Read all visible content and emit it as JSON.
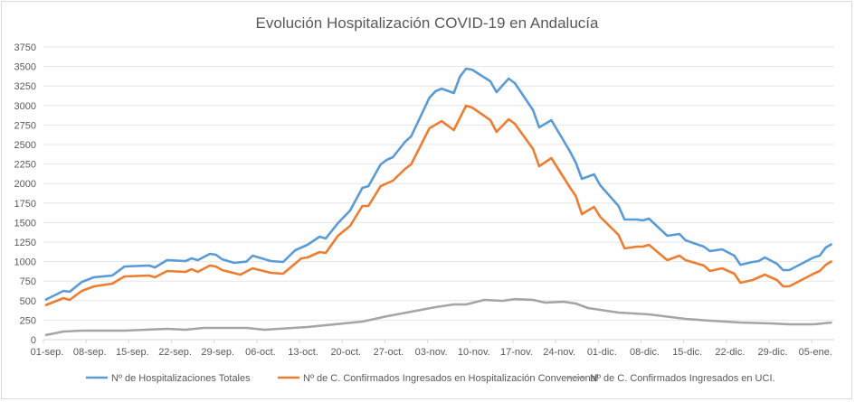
{
  "chart_data": {
    "type": "line",
    "title": "Evolución Hospitalización COVID-19 en Andalucía",
    "x_unit": "days since 01-sep.",
    "xlabel": "",
    "ylabel": "",
    "ylim": [
      0,
      3750
    ],
    "yticks": [
      0,
      250,
      500,
      750,
      1000,
      1250,
      1500,
      1750,
      2000,
      2250,
      2500,
      2750,
      3000,
      3250,
      3500,
      3750
    ],
    "xticks": [
      "01-sep.",
      "08-sep.",
      "15-sep.",
      "22-sep.",
      "29-sep.",
      "06-oct.",
      "13-oct.",
      "20-oct.",
      "27-oct.",
      "03-nov.",
      "10-nov.",
      "17-nov.",
      "24-nov.",
      "01-dic.",
      "08-dic.",
      "15-dic.",
      "22-dic.",
      "29-dic.",
      "05-ene."
    ],
    "grid": true,
    "legend_position": "bottom",
    "series": [
      {
        "name": "Nº de Hospitalizaciones Totales",
        "color": "#5b9bd5",
        "points": [
          [
            0,
            509
          ],
          [
            3,
            625
          ],
          [
            4,
            613
          ],
          [
            6,
            740
          ],
          [
            8,
            800
          ],
          [
            11,
            822
          ],
          [
            13,
            937
          ],
          [
            17,
            950
          ],
          [
            18,
            926
          ],
          [
            20,
            1020
          ],
          [
            23,
            1007
          ],
          [
            24,
            1042
          ],
          [
            25,
            1018
          ],
          [
            27,
            1100
          ],
          [
            28,
            1088
          ],
          [
            29,
            1030
          ],
          [
            31,
            984
          ],
          [
            33,
            1000
          ],
          [
            34,
            1076
          ],
          [
            37,
            1007
          ],
          [
            39,
            995
          ],
          [
            41,
            1146
          ],
          [
            43,
            1215
          ],
          [
            45,
            1319
          ],
          [
            46,
            1296
          ],
          [
            48,
            1493
          ],
          [
            50,
            1655
          ],
          [
            52,
            1944
          ],
          [
            53,
            1967
          ],
          [
            55,
            2245
          ],
          [
            56,
            2303
          ],
          [
            57,
            2338
          ],
          [
            59,
            2535
          ],
          [
            60,
            2604
          ],
          [
            63,
            3100
          ],
          [
            64,
            3183
          ],
          [
            65,
            3217
          ],
          [
            67,
            3160
          ],
          [
            68,
            3368
          ],
          [
            69,
            3472
          ],
          [
            70,
            3460
          ],
          [
            73,
            3310
          ],
          [
            74,
            3171
          ],
          [
            76,
            3345
          ],
          [
            77,
            3287
          ],
          [
            80,
            2940
          ],
          [
            81,
            2720
          ],
          [
            83,
            2812
          ],
          [
            86,
            2419
          ],
          [
            87,
            2268
          ],
          [
            88,
            2060
          ],
          [
            90,
            2118
          ],
          [
            91,
            1979
          ],
          [
            94,
            1713
          ],
          [
            95,
            1539
          ],
          [
            97,
            1539
          ],
          [
            98,
            1528
          ],
          [
            99,
            1551
          ],
          [
            102,
            1331
          ],
          [
            104,
            1354
          ],
          [
            105,
            1273
          ],
          [
            108,
            1192
          ],
          [
            109,
            1134
          ],
          [
            111,
            1157
          ],
          [
            113,
            1076
          ],
          [
            114,
            960
          ],
          [
            116,
            995
          ],
          [
            117,
            1007
          ],
          [
            118,
            1053
          ],
          [
            120,
            972
          ],
          [
            121,
            891
          ],
          [
            122,
            891
          ],
          [
            124,
            972
          ],
          [
            126,
            1053
          ],
          [
            127,
            1076
          ],
          [
            128,
            1180
          ],
          [
            129,
            1227
          ]
        ]
      },
      {
        "name": "Nº de C. Confirmados Ingresados en Hospitalización Convencional",
        "color": "#ed7d31",
        "points": [
          [
            0,
            440
          ],
          [
            3,
            532
          ],
          [
            4,
            509
          ],
          [
            6,
            625
          ],
          [
            8,
            683
          ],
          [
            11,
            718
          ],
          [
            13,
            810
          ],
          [
            17,
            822
          ],
          [
            18,
            800
          ],
          [
            20,
            880
          ],
          [
            23,
            868
          ],
          [
            24,
            903
          ],
          [
            25,
            868
          ],
          [
            27,
            950
          ],
          [
            28,
            937
          ],
          [
            29,
            891
          ],
          [
            32,
            833
          ],
          [
            34,
            914
          ],
          [
            37,
            856
          ],
          [
            39,
            845
          ],
          [
            42,
            1042
          ],
          [
            43,
            1053
          ],
          [
            45,
            1123
          ],
          [
            46,
            1111
          ],
          [
            48,
            1331
          ],
          [
            50,
            1458
          ],
          [
            52,
            1713
          ],
          [
            53,
            1713
          ],
          [
            55,
            1967
          ],
          [
            57,
            2037
          ],
          [
            59,
            2188
          ],
          [
            60,
            2245
          ],
          [
            63,
            2708
          ],
          [
            65,
            2800
          ],
          [
            67,
            2685
          ],
          [
            69,
            2998
          ],
          [
            70,
            2975
          ],
          [
            73,
            2812
          ],
          [
            74,
            2662
          ],
          [
            76,
            2824
          ],
          [
            77,
            2766
          ],
          [
            80,
            2442
          ],
          [
            81,
            2222
          ],
          [
            83,
            2326
          ],
          [
            86,
            1956
          ],
          [
            87,
            1840
          ],
          [
            88,
            1609
          ],
          [
            90,
            1701
          ],
          [
            91,
            1574
          ],
          [
            94,
            1343
          ],
          [
            95,
            1169
          ],
          [
            97,
            1192
          ],
          [
            98,
            1192
          ],
          [
            99,
            1215
          ],
          [
            102,
            1018
          ],
          [
            104,
            1076
          ],
          [
            105,
            1018
          ],
          [
            108,
            950
          ],
          [
            109,
            880
          ],
          [
            111,
            914
          ],
          [
            113,
            845
          ],
          [
            114,
            729
          ],
          [
            116,
            764
          ],
          [
            118,
            833
          ],
          [
            120,
            764
          ],
          [
            121,
            683
          ],
          [
            122,
            683
          ],
          [
            124,
            764
          ],
          [
            126,
            845
          ],
          [
            127,
            880
          ],
          [
            128,
            960
          ],
          [
            129,
            1007
          ]
        ]
      },
      {
        "name": "Nº de C. Confirmados Ingresados en UCI.",
        "color": "#a5a5a5",
        "points": [
          [
            0,
            58
          ],
          [
            3,
            104
          ],
          [
            6,
            116
          ],
          [
            13,
            116
          ],
          [
            20,
            139
          ],
          [
            23,
            127
          ],
          [
            26,
            150
          ],
          [
            33,
            150
          ],
          [
            36,
            127
          ],
          [
            43,
            162
          ],
          [
            46,
            185
          ],
          [
            52,
            231
          ],
          [
            56,
            300
          ],
          [
            64,
            417
          ],
          [
            67,
            451
          ],
          [
            69,
            451
          ],
          [
            72,
            509
          ],
          [
            75,
            498
          ],
          [
            77,
            520
          ],
          [
            80,
            509
          ],
          [
            82,
            475
          ],
          [
            85,
            486
          ],
          [
            87,
            463
          ],
          [
            89,
            405
          ],
          [
            94,
            347
          ],
          [
            99,
            324
          ],
          [
            105,
            266
          ],
          [
            109,
            243
          ],
          [
            114,
            220
          ],
          [
            119,
            208
          ],
          [
            122,
            197
          ],
          [
            126,
            197
          ],
          [
            129,
            220
          ]
        ]
      }
    ]
  }
}
